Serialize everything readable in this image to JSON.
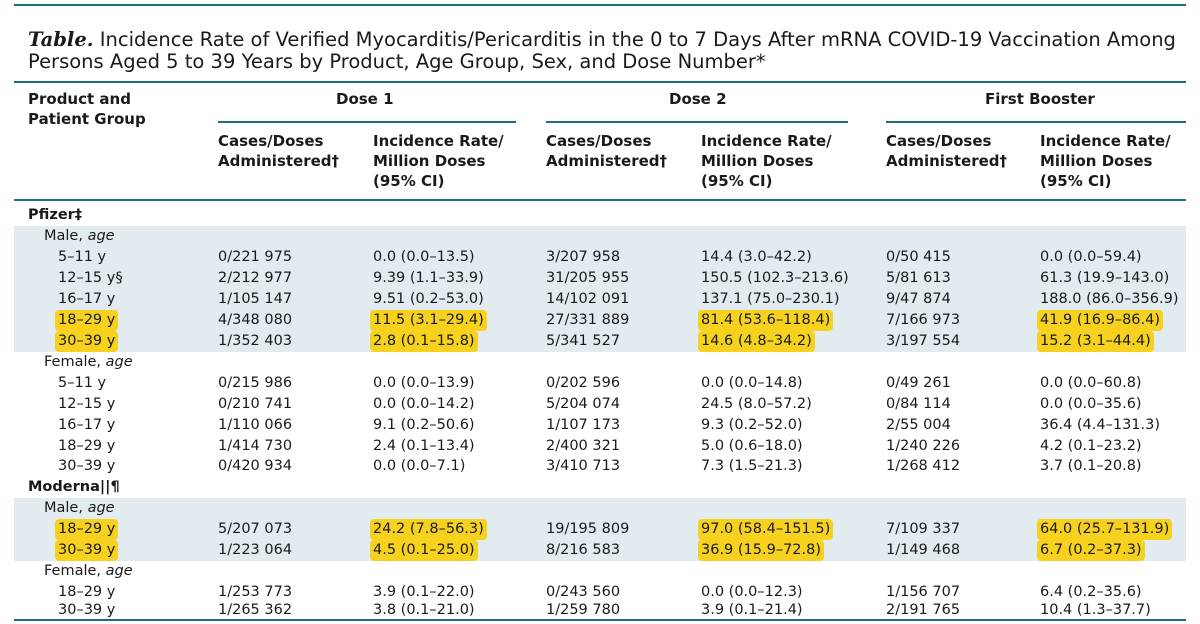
{
  "title": {
    "label": "Table.",
    "text": "Incidence Rate of Verified Myocarditis/Pericarditis in the 0 to 7 Days After mRNA COVID-19 Vaccination Among Persons Aged 5 to 39 Years by Product, Age Group, Sex, and Dose Number*"
  },
  "header": {
    "group_col": "Product and Patient Group",
    "dose1": "Dose 1",
    "dose2": "Dose 2",
    "booster": "First Booster",
    "cases_col": "Cases/Doses\nAdministered†",
    "rate_col": "Incidence Rate/\nMillion Doses\n(95% CI)"
  },
  "body": {
    "pfizer": "Pfizer‡",
    "moderna": "Moderna||¶",
    "male": "Male, ",
    "female": "Female, ",
    "age": "age",
    "rows": [
      {
        "age": "5–11 y",
        "d1c": "0/221 975",
        "d1r": "0.0 (0.0–13.5)",
        "d2c": "3/207 958",
        "d2r": "14.4 (3.0–42.2)",
        "bc": "0/50 415",
        "br": "0.0 (0.0–59.4)"
      },
      {
        "age": "12–15 y§",
        "d1c": "2/212 977",
        "d1r": "9.39 (1.1–33.9)",
        "d2c": "31/205 955",
        "d2r": "150.5 (102.3–213.6)",
        "bc": "5/81 613",
        "br": "61.3 (19.9–143.0)"
      },
      {
        "age": "16–17 y",
        "d1c": "1/105 147",
        "d1r": "9.51 (0.2–53.0)",
        "d2c": "14/102 091",
        "d2r": "137.1 (75.0–230.1)",
        "bc": "9/47 874",
        "br": "188.0 (86.0–356.9)"
      },
      {
        "age": "18–29 y",
        "d1c": "4/348 080",
        "d1r": "11.5 (3.1–29.4)",
        "d2c": "27/331 889",
        "d2r": "81.4 (53.6–118.4)",
        "bc": "7/166 973",
        "br": "41.9 (16.9–86.4)"
      },
      {
        "age": "30–39 y",
        "d1c": "1/352 403",
        "d1r": "2.8 (0.1–15.8)",
        "d2c": "5/341 527",
        "d2r": "14.6 (4.8–34.2)",
        "bc": "3/197 554",
        "br": "15.2 (3.1–44.4)"
      },
      {
        "age": "5–11 y",
        "d1c": "0/215 986",
        "d1r": "0.0 (0.0–13.9)",
        "d2c": "0/202 596",
        "d2r": "0.0 (0.0–14.8)",
        "bc": "0/49 261",
        "br": "0.0 (0.0–60.8)"
      },
      {
        "age": "12–15 y",
        "d1c": "0/210 741",
        "d1r": "0.0 (0.0–14.2)",
        "d2c": "5/204 074",
        "d2r": "24.5 (8.0–57.2)",
        "bc": "0/84 114",
        "br": "0.0 (0.0–35.6)"
      },
      {
        "age": "16–17 y",
        "d1c": "1/110 066",
        "d1r": "9.1 (0.2–50.6)",
        "d2c": "1/107 173",
        "d2r": "9.3 (0.2–52.0)",
        "bc": "2/55 004",
        "br": "36.4 (4.4–131.3)"
      },
      {
        "age": "18–29 y",
        "d1c": "1/414 730",
        "d1r": "2.4 (0.1–13.4)",
        "d2c": "2/400 321",
        "d2r": "5.0 (0.6–18.0)",
        "bc": "1/240 226",
        "br": "4.2 (0.1–23.2)"
      },
      {
        "age": "30–39 y",
        "d1c": "0/420 934",
        "d1r": "0.0 (0.0–7.1)",
        "d2c": "3/410 713",
        "d2r": "7.3 (1.5–21.3)",
        "bc": "1/268 412",
        "br": "3.7 (0.1–20.8)"
      },
      {
        "age": "18–29 y",
        "d1c": "5/207 073",
        "d1r": "24.2 (7.8–56.3)",
        "d2c": "19/195 809",
        "d2r": "97.0 (58.4–151.5)",
        "bc": "7/109 337",
        "br": "64.0 (25.7–131.9)"
      },
      {
        "age": "30–39 y",
        "d1c": "1/223 064",
        "d1r": "4.5 (0.1–25.0)",
        "d2c": "8/216 583",
        "d2r": "36.9 (15.9–72.8)",
        "bc": "1/149 468",
        "br": "6.7 (0.2–37.3)"
      },
      {
        "age": "18–29 y",
        "d1c": "1/253 773",
        "d1r": "3.9 (0.1–22.0)",
        "d2c": "0/243 560",
        "d2r": "0.0 (0.0–12.3)",
        "bc": "1/156 707",
        "br": "6.4 (0.2–35.6)"
      },
      {
        "age": "30–39 y",
        "d1c": "1/265 362",
        "d1r": "3.8 (0.1–21.0)",
        "d2c": "1/259 780",
        "d2r": "3.9 (0.1–21.4)",
        "bc": "2/191 765",
        "br": "10.4 (1.3–37.7)"
      }
    ]
  },
  "colors": {
    "rule": "#1f6f7a",
    "shade": "#e2ebef",
    "highlight": "#f6d21f"
  }
}
